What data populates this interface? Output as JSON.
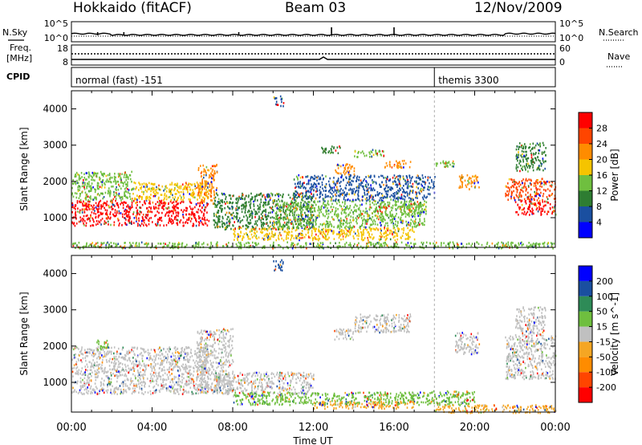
{
  "header": {
    "station": "Hokkaido (fitACF)",
    "beam": "Beam 03",
    "date": "12/Nov/2009"
  },
  "top_panels": {
    "nsky_label": "N.Sky",
    "nsearch_label": "N.Search",
    "nsky_ticks": [
      "10^5",
      "10^0"
    ],
    "nsearch_ticks": [
      "10^5",
      "10^0"
    ],
    "freq_label_1": "Freq.",
    "freq_label_2": "[MHz]",
    "freq_ticks": [
      "18",
      "8"
    ],
    "nave_label": "Nave",
    "nave_ticks": [
      "60",
      "0"
    ],
    "cpid_label": "CPID",
    "cpid_segments": [
      {
        "label": "normal (fast) -151",
        "start_hour": 0.0
      },
      {
        "label": "themis 3300",
        "start_hour": 18.0
      }
    ]
  },
  "x_axis": {
    "label": "Time UT",
    "ticks": [
      "00:00",
      "04:00",
      "08:00",
      "12:00",
      "16:00",
      "20:00",
      "00:00"
    ]
  },
  "colors": {
    "power": [
      "#0000ff",
      "#1a4fa0",
      "#2e7d32",
      "#6fbf3f",
      "#f5c400",
      "#ff8c00",
      "#ff4500",
      "#ff0000"
    ],
    "velocity": [
      "#ff0000",
      "#ff4500",
      "#ff8c00",
      "#f5a623",
      "#c0c0c0",
      "#6fbf3f",
      "#2e8b57",
      "#1a4fa0",
      "#0000ff"
    ]
  },
  "chart_data": [
    {
      "type": "heatmap",
      "title": "",
      "xlabel": "Time UT",
      "ylabel": "Slant Range [km]",
      "xlim": [
        0,
        24
      ],
      "ylim": [
        180,
        4500
      ],
      "yticks": [
        "1000",
        "2000",
        "3000",
        "4000"
      ],
      "colorbar": {
        "label": "Power [dB]",
        "ticks": [
          "28",
          "24",
          "20",
          "16",
          "12",
          "8",
          "4"
        ],
        "range": [
          0,
          30
        ]
      },
      "regions": [
        {
          "t0": 0.0,
          "t1": 6.8,
          "r0": 800,
          "r1": 1500,
          "value": 28
        },
        {
          "t0": 0.0,
          "t1": 3.0,
          "r0": 1500,
          "r1": 2300,
          "value": 14
        },
        {
          "t0": 3.0,
          "t1": 6.8,
          "r0": 1500,
          "r1": 2000,
          "value": 16
        },
        {
          "t0": 6.2,
          "t1": 7.2,
          "r0": 1500,
          "r1": 2500,
          "value": 22
        },
        {
          "t0": 7.0,
          "t1": 12.0,
          "r0": 700,
          "r1": 1700,
          "value": 8
        },
        {
          "t0": 8.0,
          "t1": 17.0,
          "r0": 400,
          "r1": 750,
          "value": 18
        },
        {
          "t0": 10.0,
          "t1": 17.5,
          "r0": 750,
          "r1": 1500,
          "value": 12
        },
        {
          "t0": 11.0,
          "t1": 18.0,
          "r0": 1500,
          "r1": 2200,
          "value": 6
        },
        {
          "t0": 12.3,
          "t1": 13.3,
          "r0": 2800,
          "r1": 3000,
          "value": 10
        },
        {
          "t0": 13.0,
          "t1": 14.0,
          "r0": 2200,
          "r1": 2500,
          "value": 22
        },
        {
          "t0": 14.0,
          "t1": 15.5,
          "r0": 2700,
          "r1": 2900,
          "value": 12
        },
        {
          "t0": 15.5,
          "t1": 16.8,
          "r0": 2400,
          "r1": 2600,
          "value": 20
        },
        {
          "t0": 16.0,
          "t1": 17.6,
          "r0": 1100,
          "r1": 1500,
          "value": 14
        },
        {
          "t0": 18.0,
          "t1": 19.0,
          "r0": 2400,
          "r1": 2600,
          "value": 12
        },
        {
          "t0": 19.2,
          "t1": 20.2,
          "r0": 1800,
          "r1": 2200,
          "value": 22
        },
        {
          "t0": 21.5,
          "t1": 24.0,
          "r0": 1500,
          "r1": 2100,
          "value": 26
        },
        {
          "t0": 22.0,
          "t1": 24.0,
          "r0": 1100,
          "r1": 1500,
          "value": 28
        },
        {
          "t0": 22.0,
          "t1": 23.5,
          "r0": 2300,
          "r1": 3100,
          "value": 10
        },
        {
          "t0": 10.0,
          "t1": 10.5,
          "r0": 4100,
          "r1": 4400,
          "value": 6
        },
        {
          "t0": 0.0,
          "t1": 24.0,
          "r0": 180,
          "r1": 350,
          "value": 12
        }
      ]
    },
    {
      "type": "heatmap",
      "title": "",
      "xlabel": "Time UT",
      "ylabel": "Slant Range [km]",
      "xlim": [
        0,
        24
      ],
      "ylim": [
        180,
        4500
      ],
      "yticks": [
        "1000",
        "2000",
        "3000",
        "4000"
      ],
      "colorbar": {
        "label": "Velocity [m s^-1]",
        "ticks": [
          "200",
          "100",
          "50",
          "15",
          "-15",
          "-50",
          "-100",
          "-200"
        ],
        "range": [
          -250,
          250
        ]
      },
      "regions": [
        {
          "t0": 0.0,
          "t1": 6.8,
          "r0": 700,
          "r1": 2000,
          "value": 0
        },
        {
          "t0": 6.2,
          "t1": 8.0,
          "r0": 700,
          "r1": 2500,
          "value": 0
        },
        {
          "t0": 1.2,
          "t1": 1.8,
          "r0": 1900,
          "r1": 2200,
          "value": 30
        },
        {
          "t0": 7.0,
          "t1": 12.0,
          "r0": 700,
          "r1": 1300,
          "value": 0
        },
        {
          "t0": 8.0,
          "t1": 17.0,
          "r0": 400,
          "r1": 750,
          "value": 30
        },
        {
          "t0": 12.0,
          "t1": 17.0,
          "r0": 300,
          "r1": 500,
          "value": -60
        },
        {
          "t0": 13.0,
          "t1": 14.0,
          "r0": 2200,
          "r1": 2500,
          "value": 0
        },
        {
          "t0": 14.0,
          "t1": 16.8,
          "r0": 2400,
          "r1": 2900,
          "value": 0
        },
        {
          "t0": 17.0,
          "t1": 20.0,
          "r0": 400,
          "r1": 800,
          "value": 40
        },
        {
          "t0": 18.0,
          "t1": 24.0,
          "r0": 180,
          "r1": 400,
          "value": -70
        },
        {
          "t0": 19.0,
          "t1": 20.2,
          "r0": 1800,
          "r1": 2400,
          "value": 0
        },
        {
          "t0": 21.5,
          "t1": 24.0,
          "r0": 1100,
          "r1": 2300,
          "value": 0
        },
        {
          "t0": 22.0,
          "t1": 23.5,
          "r0": 2300,
          "r1": 3100,
          "value": 0
        },
        {
          "t0": 10.0,
          "t1": 10.5,
          "r0": 4100,
          "r1": 4400,
          "value": 150
        }
      ]
    }
  ]
}
